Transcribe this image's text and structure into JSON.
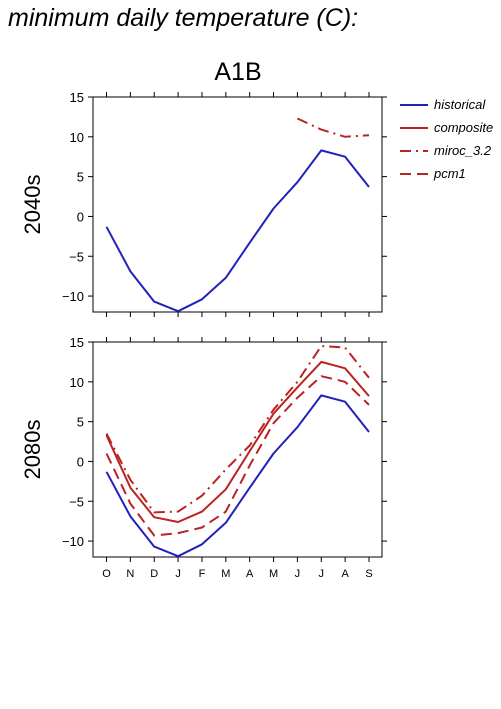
{
  "title": "minimum daily temperature (C):",
  "scenario": "A1B",
  "colors": {
    "historical": "#2222bb",
    "projection": "#bb2222",
    "axis": "#000000"
  },
  "legend": [
    {
      "label": "historical",
      "color": "#2222bb",
      "dash": "solid"
    },
    {
      "label": "composite",
      "color": "#bb2222",
      "dash": "solid"
    },
    {
      "label": "miroc_3.2",
      "color": "#bb2222",
      "dash": "dashdot"
    },
    {
      "label": "pcm1",
      "color": "#bb2222",
      "dash": "dashed"
    }
  ],
  "chart_data": [
    {
      "type": "line",
      "row_label": "2040s",
      "x": [
        "O",
        "N",
        "D",
        "J",
        "F",
        "M",
        "A",
        "M",
        "J",
        "J",
        "A",
        "S"
      ],
      "ylim": [
        -12,
        15
      ],
      "yticks": [
        -10,
        -5,
        0,
        5,
        10,
        15
      ],
      "series": [
        {
          "name": "historical",
          "dash": "solid",
          "color": "#2222bb",
          "values": [
            -1.3,
            -6.9,
            -10.7,
            -11.9,
            -10.4,
            -7.7,
            -3.3,
            1.0,
            4.3,
            8.3,
            7.5,
            3.7
          ]
        },
        {
          "name": "miroc_3.2",
          "dash": "dashdot",
          "color": "#bb2222",
          "values": [
            null,
            null,
            null,
            null,
            null,
            null,
            null,
            null,
            12.3,
            10.9,
            10.0,
            10.2
          ]
        }
      ]
    },
    {
      "type": "line",
      "row_label": "2080s",
      "x": [
        "O",
        "N",
        "D",
        "J",
        "F",
        "M",
        "A",
        "M",
        "J",
        "J",
        "A",
        "S"
      ],
      "ylim": [
        -12,
        15
      ],
      "yticks": [
        -10,
        -5,
        0,
        5,
        10,
        15
      ],
      "series": [
        {
          "name": "historical",
          "dash": "solid",
          "color": "#2222bb",
          "values": [
            -1.3,
            -6.9,
            -10.7,
            -11.9,
            -10.4,
            -7.7,
            -3.3,
            1.0,
            4.3,
            8.3,
            7.5,
            3.7
          ]
        },
        {
          "name": "composite",
          "dash": "solid",
          "color": "#bb2222",
          "values": [
            3.3,
            -3.3,
            -7.0,
            -7.6,
            -6.3,
            -3.5,
            1.3,
            6.0,
            9.3,
            12.5,
            11.7,
            8.2
          ]
        },
        {
          "name": "miroc_3.2",
          "dash": "dashdot",
          "color": "#bb2222",
          "values": [
            3.5,
            -2.3,
            -6.4,
            -6.3,
            -4.3,
            -1.0,
            2.0,
            6.5,
            10.0,
            14.5,
            14.3,
            10.5
          ]
        },
        {
          "name": "pcm1",
          "dash": "dashed",
          "color": "#bb2222",
          "values": [
            1.0,
            -5.3,
            -9.3,
            -9.0,
            -8.3,
            -6.3,
            -0.5,
            4.8,
            8.0,
            10.7,
            10.0,
            7.1
          ]
        }
      ]
    }
  ]
}
